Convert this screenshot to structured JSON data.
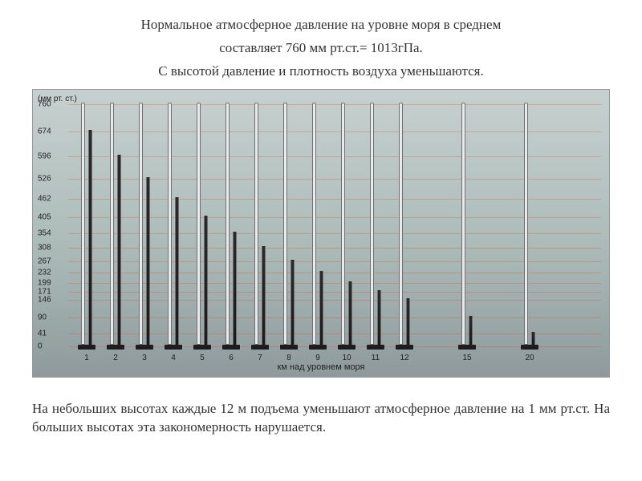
{
  "header": {
    "line1": "Нормальное атмосферное давление на уровне моря в среднем",
    "line2": "составляет 760 мм рт.ст.= 1013гПа.",
    "line3": "С высотой давление и плотность воздуха уменьшаются."
  },
  "chart": {
    "type": "bar",
    "y_axis_title": "(мм рт. ст.)",
    "x_axis_title": "км над уровнем моря",
    "y_ticks": [
      760,
      674,
      596,
      526,
      462,
      405,
      354,
      308,
      267,
      232,
      199,
      171,
      146,
      90,
      41,
      0
    ],
    "y_max": 760,
    "tube_height": 760,
    "background_gradient": [
      "#c6d0cf",
      "#8c9799"
    ],
    "grid_color": "rgba(215,90,60,0.35)",
    "tube_color": "#e8ebed",
    "tube_border": "#6f6f6f",
    "mercury_color": "#1a1a1a",
    "base_color": "#1d1d1d",
    "text_color": "#222222",
    "bars": [
      {
        "x": 1,
        "mercury": 674
      },
      {
        "x": 2,
        "mercury": 596
      },
      {
        "x": 3,
        "mercury": 526
      },
      {
        "x": 4,
        "mercury": 462
      },
      {
        "x": 5,
        "mercury": 405
      },
      {
        "x": 6,
        "mercury": 354
      },
      {
        "x": 7,
        "mercury": 308
      },
      {
        "x": 8,
        "mercury": 267
      },
      {
        "x": 9,
        "mercury": 232
      },
      {
        "x": 10,
        "mercury": 199
      },
      {
        "x": 11,
        "mercury": 171
      },
      {
        "x": 12,
        "mercury": 146
      },
      {
        "x": 15,
        "mercury": 90
      },
      {
        "x": 20,
        "mercury": 41
      }
    ],
    "main_group_count": 12,
    "gap_indices": [
      12,
      13
    ]
  },
  "footer": {
    "text": "На небольших высотах каждые 12 м подъема уменьшают атмосферное давление на 1 мм рт.ст. На больших высотах эта закономерность нарушается."
  }
}
